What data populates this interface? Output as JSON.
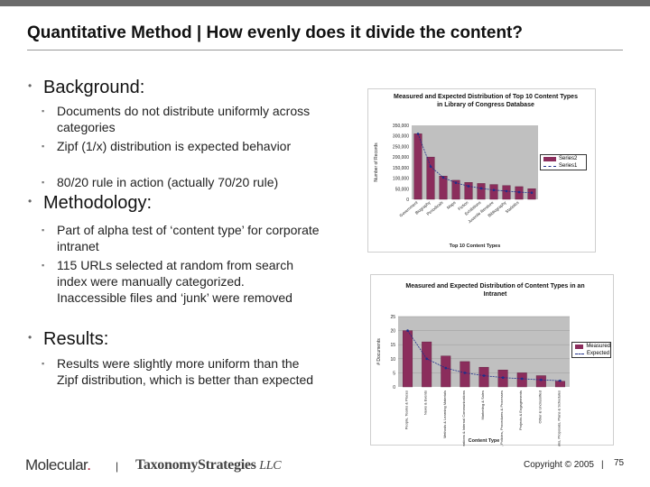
{
  "slide": {
    "title": "Quantitative Method | How evenly does it divide the content?",
    "sections": [
      {
        "heading": "Background:",
        "items": [
          "Documents do not distribute uniformly across categories",
          "Zipf (1/x) distribution is expected behavior",
          "80/20 rule in action (actually 70/20 rule)"
        ]
      },
      {
        "heading": "Methodology:",
        "items": [
          "Part of alpha test of ‘content type’ for corporate intranet",
          "115 URLs selected at random from search index were manually categorized. Inaccessible files and ‘junk’ were removed"
        ]
      },
      {
        "heading": "Results:",
        "items": [
          "Results were slightly more uniform than the Zipf distribution, which is better than expected"
        ]
      }
    ]
  },
  "footer": {
    "logo_molecular": "Molecular",
    "logo_molecular_dot": ".",
    "separator": "|",
    "logo_taxonomy": "TaxonomyStrategies",
    "logo_taxonomy_llc": "LLC",
    "copyright": "Copyright © 2005",
    "page_number": "75"
  },
  "colors": {
    "bar": "#8b2d5c",
    "expected_line": "#1f2f8a",
    "top_bar": "#6b6b6b",
    "plot_bg": "#c0c0c0"
  },
  "chart_data": [
    {
      "type": "bar",
      "title": "Measured and Expected Distribution of Top 10 Content Types in Library of Congress Database",
      "xlabel": "Top 10 Content Types",
      "ylabel": "Number of Records",
      "ylim": [
        0,
        350000
      ],
      "yticks": [
        "0",
        "50,000",
        "100,000",
        "150,000",
        "200,000",
        "250,000",
        "300,000",
        "350,000"
      ],
      "categories": [
        "Government",
        "Biography",
        "Periodicals",
        "Maps",
        "Fiction",
        "Exhibitions",
        "Juvenile literature",
        "Bibliography",
        "Statistics",
        ""
      ],
      "series": [
        {
          "name": "Series2",
          "kind": "bar",
          "values": [
            310000,
            200000,
            110000,
            90000,
            80000,
            75000,
            70000,
            65000,
            60000,
            50000
          ]
        },
        {
          "name": "Series1",
          "kind": "line",
          "values": [
            310000,
            155000,
            103000,
            78000,
            62000,
            52000,
            44000,
            39000,
            34000,
            31000
          ]
        }
      ],
      "legend": "right",
      "grid": false
    },
    {
      "type": "bar",
      "title": "Measured and Expected Distribution of Content Types in an Intranet",
      "xlabel": "Content Type",
      "ylabel": "# Documents",
      "ylim": [
        0,
        25
      ],
      "yticks": [
        "0",
        "5",
        "10",
        "15",
        "20",
        "25"
      ],
      "categories": [
        "People, Teams & Places",
        "News & Events",
        "Methods & Learning Materials",
        "Operations & Internal Communications",
        "Marketing & Sales",
        "Regulations, Policies, Procedures & Processes",
        "Projects & Engagements",
        "Other & Unclassified",
        "Programs, Proposals, Plans & Schedules"
      ],
      "series": [
        {
          "name": "Measured",
          "kind": "bar",
          "values": [
            20,
            16,
            11,
            9,
            7,
            6,
            5,
            4,
            2
          ]
        },
        {
          "name": "Expected",
          "kind": "line",
          "values": [
            20,
            10,
            6.7,
            5,
            4,
            3.3,
            2.9,
            2.5,
            2.2
          ]
        }
      ],
      "legend": "right",
      "grid": true
    }
  ]
}
